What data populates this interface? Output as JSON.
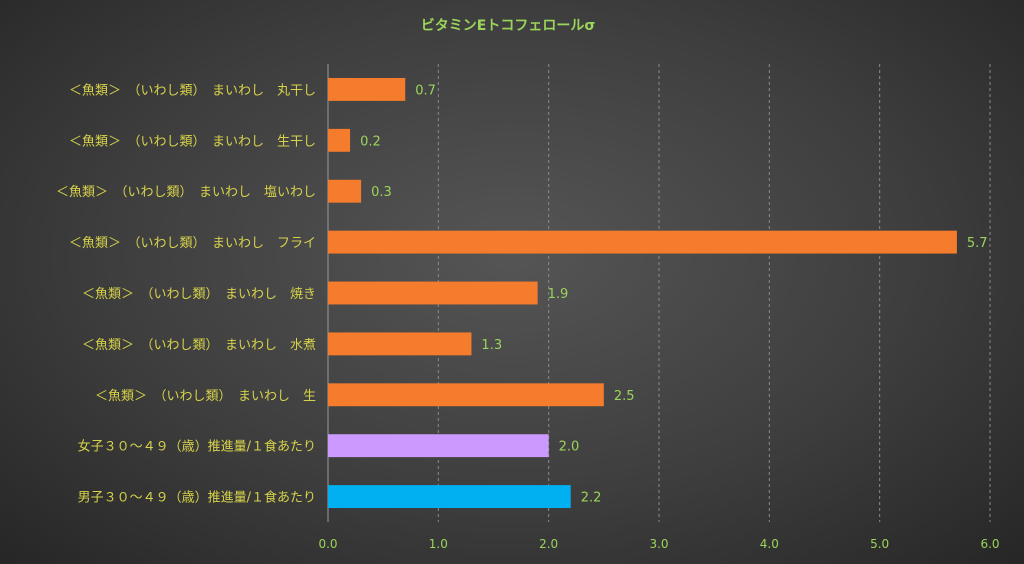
{
  "chart_data": {
    "type": "bar",
    "orientation": "horizontal",
    "title": "ビタミンEトコフェロールσ",
    "xlabel": "",
    "ylabel": "",
    "xlim": [
      0,
      6
    ],
    "x_ticks": [
      "0.0",
      "1.0",
      "2.0",
      "3.0",
      "4.0",
      "5.0",
      "6.0"
    ],
    "grid": true,
    "legend": "none",
    "categories": [
      "＜魚類＞　（いわし類）　まいわし　丸干し",
      "＜魚類＞　（いわし類）　まいわし　生干し",
      "＜魚類＞　（いわし類）　まいわし　塩いわし",
      "＜魚類＞　（いわし類）　まいわし　フライ",
      "＜魚類＞　（いわし類）　まいわし　焼き",
      "＜魚類＞　（いわし類）　まいわし　水煮",
      "＜魚類＞　（いわし類）　まいわし　生",
      "女子３０～４９（歳）推進量/１食あたり",
      "男子３０～４９（歳）推進量/１食あたり"
    ],
    "values": [
      0.7,
      0.2,
      0.3,
      5.7,
      1.9,
      1.3,
      2.5,
      2.0,
      2.2
    ],
    "value_labels": [
      "0.7",
      "0.2",
      "0.3",
      "5.7",
      "1.9",
      "1.3",
      "2.5",
      "2.0",
      "2.2"
    ],
    "bar_colors": [
      "#f47c2c",
      "#f47c2c",
      "#f47c2c",
      "#f47c2c",
      "#f47c2c",
      "#f47c2c",
      "#f47c2c",
      "#cc99ff",
      "#00b0f0"
    ]
  }
}
